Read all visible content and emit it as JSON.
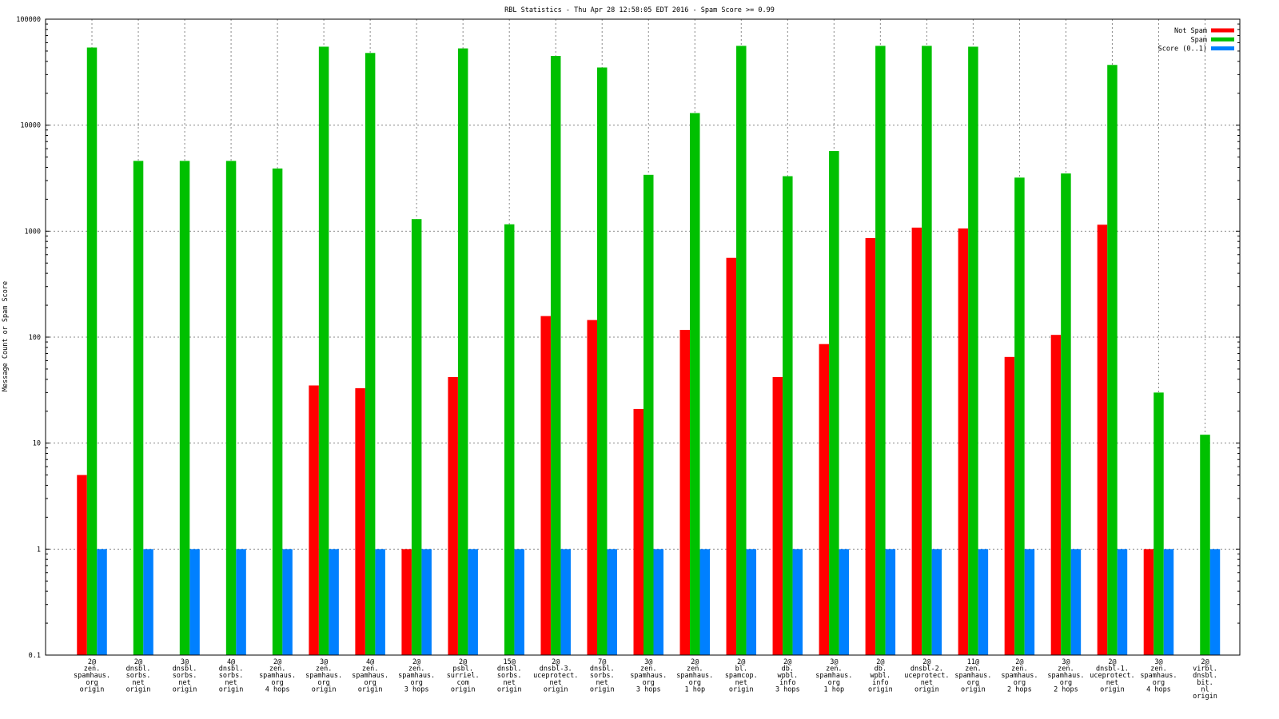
{
  "chart_data": {
    "type": "bar",
    "title": "RBL Statistics - Thu Apr 28 12:58:05 EDT 2016 - Spam Score >= 0.99",
    "ylabel": "Message Count or Spam Score",
    "xlabel": "",
    "yscale": "log",
    "ylim": [
      0.1,
      100000
    ],
    "yticks": [
      "0.1",
      "1",
      "10",
      "100",
      "1000",
      "10000",
      "100000"
    ],
    "grid": "dotted",
    "legend_position": "top-right",
    "categories": [
      [
        "2@",
        "zen.",
        "spamhaus.",
        "org",
        "origin"
      ],
      [
        "2@",
        "dnsbl.",
        "sorbs.",
        "net",
        "origin"
      ],
      [
        "3@",
        "dnsbl.",
        "sorbs.",
        "net",
        "origin"
      ],
      [
        "4@",
        "dnsbl.",
        "sorbs.",
        "net",
        "origin"
      ],
      [
        "2@",
        "zen.",
        "spamhaus.",
        "org",
        "4 hops"
      ],
      [
        "3@",
        "zen.",
        "spamhaus.",
        "org",
        "origin"
      ],
      [
        "4@",
        "zen.",
        "spamhaus.",
        "org",
        "origin"
      ],
      [
        "2@",
        "zen.",
        "spamhaus.",
        "org",
        "3 hops"
      ],
      [
        "2@",
        "psbl.",
        "surriel.",
        "com",
        "origin"
      ],
      [
        "15@",
        "dnsbl.",
        "sorbs.",
        "net",
        "origin"
      ],
      [
        "2@",
        "dnsbl-3.",
        "uceprotect.",
        "net",
        "origin"
      ],
      [
        "7@",
        "dnsbl.",
        "sorbs.",
        "net",
        "origin"
      ],
      [
        "3@",
        "zen.",
        "spamhaus.",
        "org",
        "3 hops"
      ],
      [
        "2@",
        "zen.",
        "spamhaus.",
        "org",
        "1 hop"
      ],
      [
        "2@",
        "bl.",
        "spamcop.",
        "net",
        "origin"
      ],
      [
        "2@",
        "db.",
        "wpbl.",
        "info",
        "3 hops"
      ],
      [
        "3@",
        "zen.",
        "spamhaus.",
        "org",
        "1 hop"
      ],
      [
        "2@",
        "db.",
        "wpbl.",
        "info",
        "origin"
      ],
      [
        "2@",
        "dnsbl-2.",
        "uceprotect.",
        "net",
        "origin"
      ],
      [
        "11@",
        "zen.",
        "spamhaus.",
        "org",
        "origin"
      ],
      [
        "2@",
        "zen.",
        "spamhaus.",
        "org",
        "2 hops"
      ],
      [
        "3@",
        "zen.",
        "spamhaus.",
        "org",
        "2 hops"
      ],
      [
        "2@",
        "dnsbl-1.",
        "uceprotect.",
        "net",
        "origin"
      ],
      [
        "3@",
        "zen.",
        "spamhaus.",
        "org",
        "4 hops"
      ],
      [
        "2@",
        "virbl.",
        "dnsbl.",
        "bit.",
        "nl",
        "origin"
      ]
    ],
    "series": [
      {
        "name": "Not Spam",
        "color": "#ff0000",
        "values": [
          5,
          null,
          null,
          null,
          null,
          35,
          33,
          1,
          42,
          null,
          158,
          145,
          21,
          117,
          560,
          42,
          86,
          860,
          1080,
          1060,
          65,
          105,
          1150,
          1,
          null
        ]
      },
      {
        "name": "Spam",
        "color": "#00c000",
        "values": [
          54000,
          4600,
          4600,
          4600,
          3900,
          55000,
          48000,
          1300,
          53000,
          1160,
          45000,
          35000,
          3400,
          13000,
          56000,
          3300,
          5700,
          56000,
          56000,
          55000,
          3200,
          3500,
          37000,
          30,
          12
        ]
      },
      {
        "name": "Score (0..1)",
        "color": "#0080ff",
        "values": [
          1,
          1,
          1,
          1,
          1,
          1,
          1,
          1,
          1,
          1,
          1,
          1,
          1,
          1,
          1,
          1,
          1,
          1,
          1,
          1,
          1,
          1,
          1,
          1,
          1
        ]
      }
    ]
  }
}
